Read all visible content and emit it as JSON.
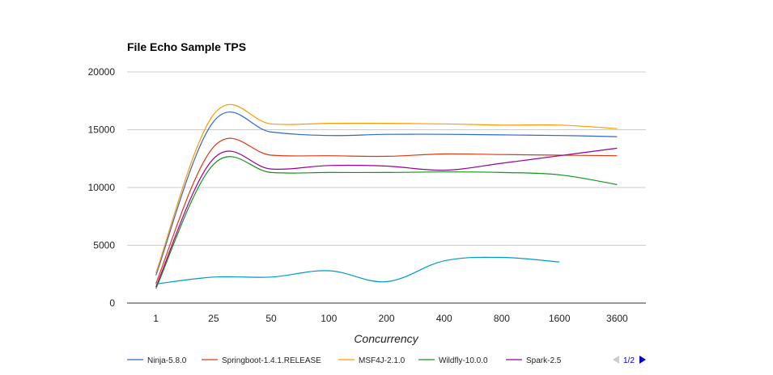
{
  "chart_data": {
    "type": "line",
    "title": "File Echo Sample TPS",
    "xlabel": "Concurrency",
    "ylabel": "",
    "ylim": [
      0,
      20000
    ],
    "yticks": [
      0,
      5000,
      10000,
      15000,
      20000
    ],
    "grid": true,
    "legend_position": "bottom",
    "categories": [
      "1",
      "25",
      "50",
      "100",
      "200",
      "400",
      "800",
      "1600",
      "3600"
    ],
    "series": [
      {
        "name": "Ninja-5.8.0",
        "color": "#3366cc",
        "values": [
          2400,
          15700,
          14800,
          14500,
          14600,
          14600,
          14550,
          14500,
          14400
        ]
      },
      {
        "name": "Springboot-1.4.1.RELEASE",
        "color": "#dc3912",
        "values": [
          1700,
          13500,
          12800,
          12750,
          12700,
          12900,
          12850,
          12800,
          12750
        ]
      },
      {
        "name": "MSF4J-2.1.0",
        "color": "#ff9900",
        "values": [
          2600,
          16300,
          15500,
          15550,
          15550,
          15500,
          15400,
          15400,
          15100
        ]
      },
      {
        "name": "Wildfly-10.0.0",
        "color": "#109618",
        "values": [
          1250,
          12000,
          11300,
          11300,
          11300,
          11350,
          11300,
          11100,
          10250
        ]
      },
      {
        "name": "Spark-2.5",
        "color": "#990099",
        "values": [
          1400,
          12500,
          11600,
          11900,
          11850,
          11500,
          12100,
          12750,
          13400
        ]
      },
      {
        "name": "",
        "color": "#0099c6",
        "values": [
          1650,
          2250,
          2250,
          2800,
          1850,
          3650,
          3950,
          3550,
          null
        ]
      }
    ],
    "legend_pager": "1/2"
  }
}
